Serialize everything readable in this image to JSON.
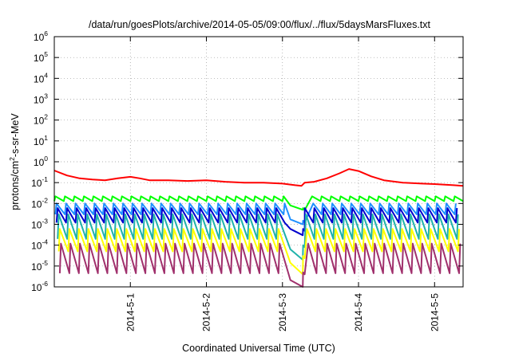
{
  "chart_data": {
    "type": "line",
    "title": "/data/run/goesPlots/archive/2014-05-05/09:00/flux/../flux/5daysMarsFluxes.txt",
    "xlabel": "Coordinated Universal Time (UTC)",
    "ylabel": {
      "pre": "protons/cm",
      "sup": "2",
      "post": "-s-sr-MeV"
    },
    "y_scale": "log",
    "ylim": [
      1e-06,
      1000000.0
    ],
    "y_ticks": [
      {
        "value": 1e-06,
        "base": "10",
        "exp": "-6"
      },
      {
        "value": 1e-05,
        "base": "10",
        "exp": "-5"
      },
      {
        "value": 0.0001,
        "base": "10",
        "exp": "-4"
      },
      {
        "value": 0.001,
        "base": "10",
        "exp": "-3"
      },
      {
        "value": 0.01,
        "base": "10",
        "exp": "-2"
      },
      {
        "value": 0.1,
        "base": "10",
        "exp": "-1"
      },
      {
        "value": 1,
        "base": "10",
        "exp": "0"
      },
      {
        "value": 10,
        "base": "10",
        "exp": "1"
      },
      {
        "value": 100,
        "base": "10",
        "exp": "2"
      },
      {
        "value": 1000,
        "base": "10",
        "exp": "3"
      },
      {
        "value": 10000,
        "base": "10",
        "exp": "4"
      },
      {
        "value": 100000,
        "base": "10",
        "exp": "5"
      },
      {
        "value": 1000000,
        "base": "10",
        "exp": "6"
      }
    ],
    "xlim": [
      "2014-04-30T00:00",
      "2014-05-05T09:00"
    ],
    "x_ticks": [
      {
        "value": "2014-05-01T00:00",
        "label": "2014-5-1"
      },
      {
        "value": "2014-05-02T00:00",
        "label": "2014-5-2"
      },
      {
        "value": "2014-05-03T00:00",
        "label": "2014-5-3"
      },
      {
        "value": "2014-05-04T00:00",
        "label": "2014-5-4"
      },
      {
        "value": "2014-05-05T00:00",
        "label": "2014-5-5"
      }
    ],
    "grid": true,
    "legend": "none",
    "series": [
      {
        "color": "#ff0000",
        "sawtooth": false,
        "points": [
          [
            "2014-04-30T00:00",
            0.38
          ],
          [
            "2014-04-30T04:00",
            0.22
          ],
          [
            "2014-04-30T08:00",
            0.16
          ],
          [
            "2014-04-30T12:00",
            0.14
          ],
          [
            "2014-04-30T16:00",
            0.13
          ],
          [
            "2014-04-30T20:00",
            0.16
          ],
          [
            "2014-05-01T00:00",
            0.19
          ],
          [
            "2014-05-01T03:00",
            0.16
          ],
          [
            "2014-05-01T06:00",
            0.13
          ],
          [
            "2014-05-01T12:00",
            0.13
          ],
          [
            "2014-05-01T18:00",
            0.12
          ],
          [
            "2014-05-02T00:00",
            0.13
          ],
          [
            "2014-05-02T06:00",
            0.11
          ],
          [
            "2014-05-02T12:00",
            0.1
          ],
          [
            "2014-05-02T18:00",
            0.1
          ],
          [
            "2014-05-03T00:00",
            0.09
          ],
          [
            "2014-05-03T04:00",
            0.075
          ],
          [
            "2014-05-03T06:00",
            0.07
          ],
          [
            "2014-05-03T07:00",
            0.1
          ],
          [
            "2014-05-03T10:00",
            0.11
          ],
          [
            "2014-05-03T14:00",
            0.16
          ],
          [
            "2014-05-03T18:00",
            0.28
          ],
          [
            "2014-05-03T21:00",
            0.45
          ],
          [
            "2014-05-04T00:00",
            0.36
          ],
          [
            "2014-05-04T04:00",
            0.2
          ],
          [
            "2014-05-04T08:00",
            0.13
          ],
          [
            "2014-05-04T14:00",
            0.1
          ],
          [
            "2014-05-04T20:00",
            0.09
          ],
          [
            "2014-05-05T00:00",
            0.085
          ],
          [
            "2014-05-05T06:00",
            0.075
          ],
          [
            "2014-05-05T09:00",
            0.07
          ]
        ]
      },
      {
        "color": "#00ff00",
        "sawtooth": true,
        "peak": 0.022,
        "trough": 0.013,
        "dip": 0.005,
        "recover": 0.006
      },
      {
        "color": "#1e90ff",
        "sawtooth": true,
        "peak": 0.01,
        "trough": 0.003,
        "dip": 0.001,
        "recover": 0.0015
      },
      {
        "color": "#0000cd",
        "sawtooth": true,
        "peak": 0.006,
        "trough": 0.0012,
        "dip": 0.0003,
        "recover": 0.0006
      },
      {
        "color": "#20b2aa",
        "sawtooth": true,
        "peak": 0.003,
        "trough": 0.0002,
        "dip": 2e-05,
        "recover": 0.0001
      },
      {
        "color": "#ffff00",
        "sawtooth": true,
        "peak": 0.0006,
        "trough": 5e-05,
        "dip": 4e-06,
        "recover": 3e-05
      },
      {
        "color": "#a0306c",
        "sawtooth": true,
        "peak": 0.00012,
        "trough": 4.5e-06,
        "dip": 1e-06,
        "recover": 5e-06
      }
    ]
  }
}
